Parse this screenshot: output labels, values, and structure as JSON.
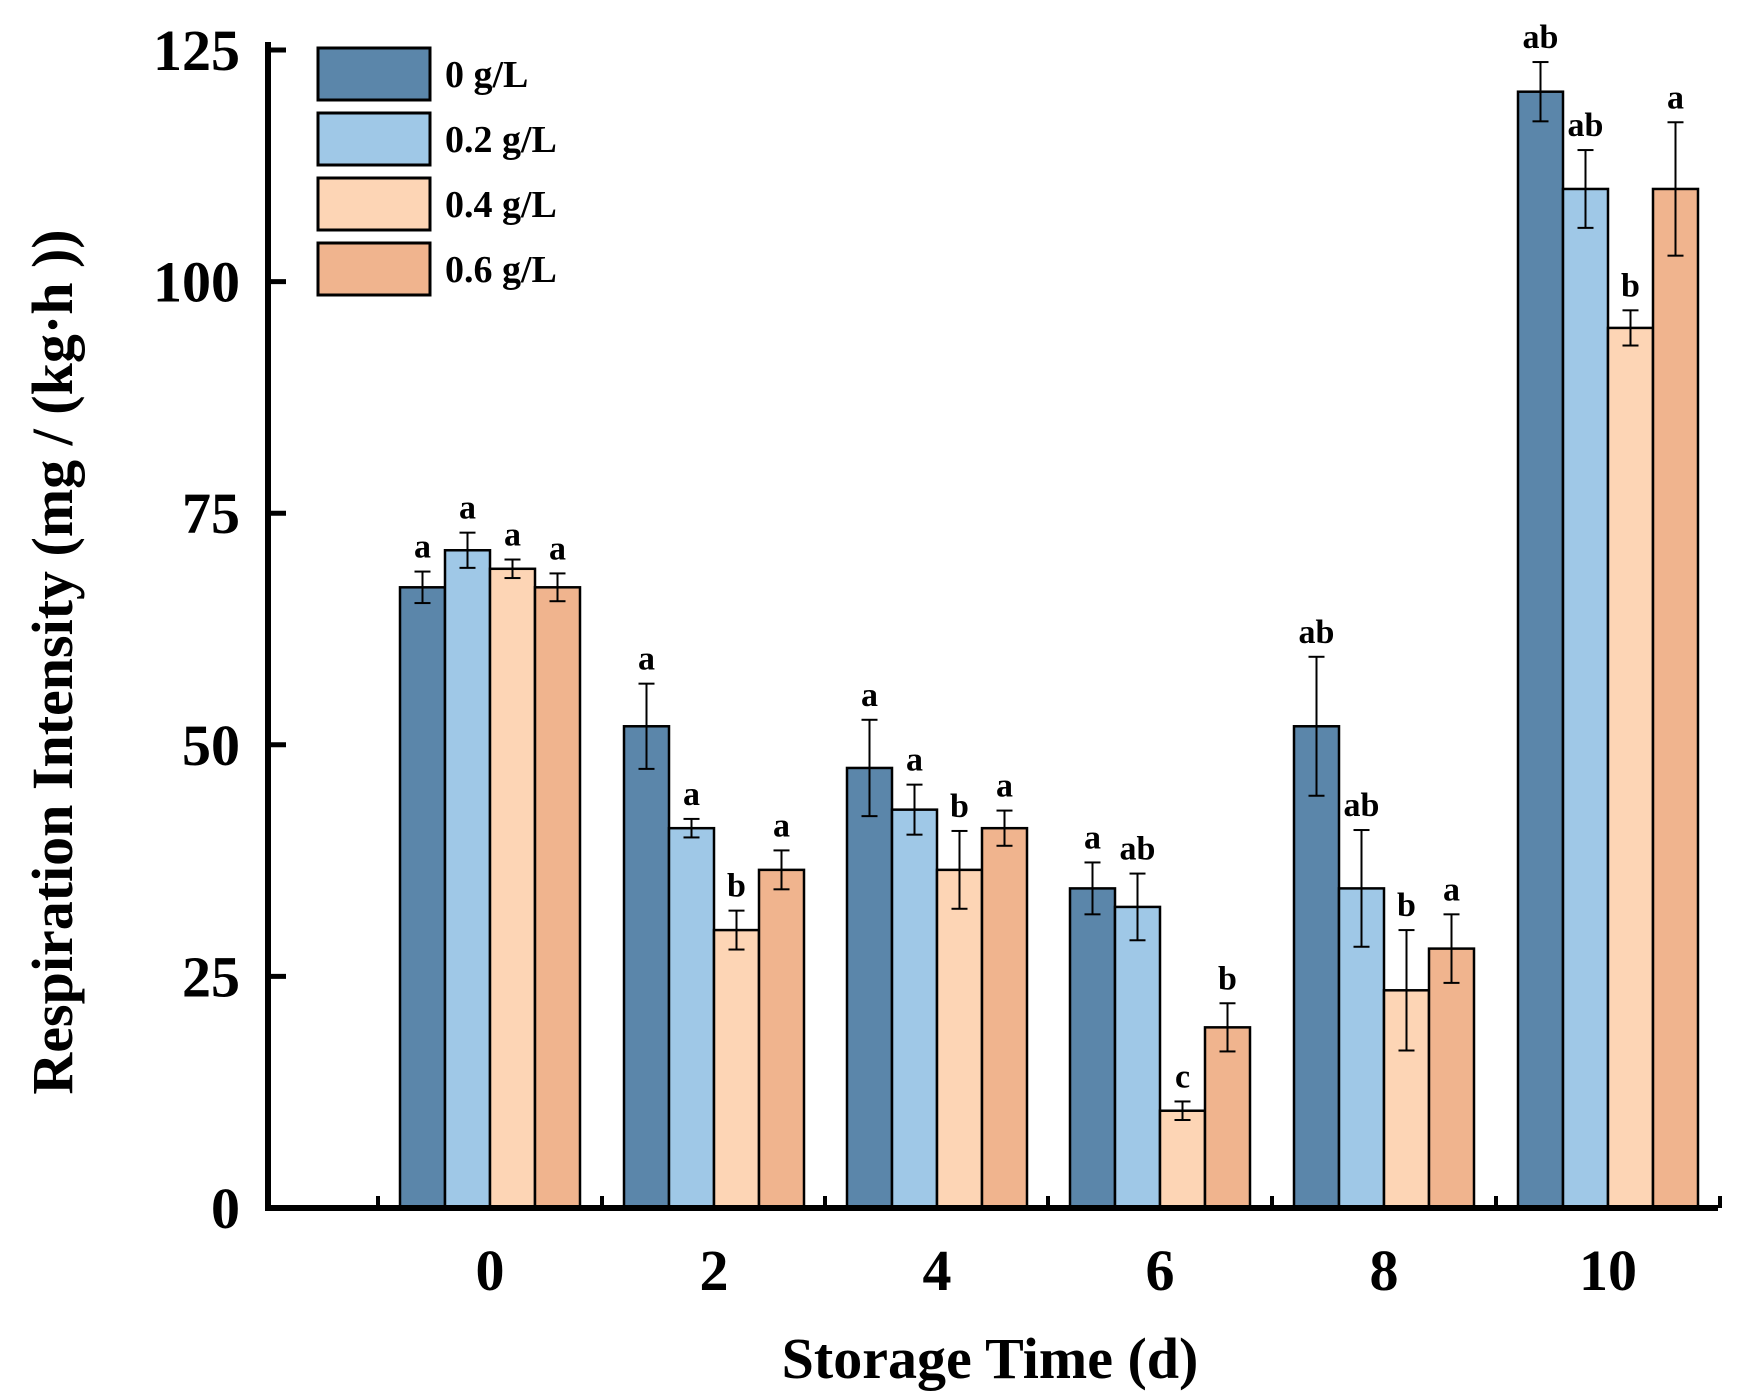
{
  "chart_data": {
    "type": "bar",
    "title": "",
    "xlabel": "Storage Time (d)",
    "ylabel": "Respiration Intensity (mg / (kg·h ))",
    "ylim": [
      0,
      125
    ],
    "yticks": [
      0,
      25,
      50,
      75,
      100,
      125
    ],
    "categories": [
      "0",
      "2",
      "4",
      "6",
      "8",
      "10"
    ],
    "legend_position": "top-left",
    "grid": false,
    "series": [
      {
        "name": "0 g/L",
        "color": "#5b86aa",
        "values": [
          67,
          52,
          47.5,
          34.5,
          52,
          120.5
        ],
        "errors": [
          1.7,
          4.6,
          5.2,
          2.8,
          7.5,
          3.2
        ],
        "letters": [
          "a",
          "a",
          "a",
          "a",
          "ab",
          "ab"
        ]
      },
      {
        "name": "0.2 g/L",
        "color": "#9fc8e7",
        "values": [
          71,
          41,
          43,
          32.5,
          34.5,
          110
        ],
        "errors": [
          1.9,
          1.0,
          2.7,
          3.6,
          6.3,
          4.2
        ],
        "letters": [
          "a",
          "a",
          "a",
          "ab",
          "ab",
          "ab"
        ]
      },
      {
        "name": "0.4 g/L",
        "color": "#fdd5b5",
        "values": [
          69,
          30,
          36.5,
          10.5,
          23.5,
          95
        ],
        "errors": [
          1.0,
          2.1,
          4.2,
          1.0,
          6.5,
          1.9
        ],
        "letters": [
          "a",
          "b",
          "b",
          "c",
          "b",
          "b"
        ]
      },
      {
        "name": "0.6 g/L",
        "color": "#f0b48e",
        "values": [
          67,
          36.5,
          41,
          19.5,
          28,
          110
        ],
        "errors": [
          1.5,
          2.1,
          1.9,
          2.6,
          3.7,
          7.2
        ],
        "letters": [
          "a",
          "a",
          "a",
          "b",
          "a",
          "a"
        ]
      }
    ]
  }
}
